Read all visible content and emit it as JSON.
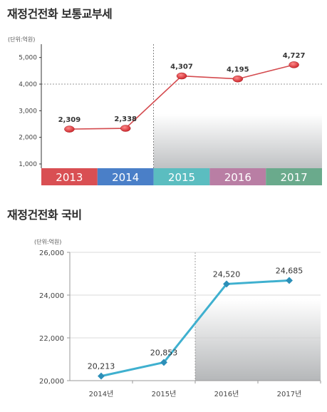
{
  "charts": [
    {
      "title": "재정건전화 보통교부세",
      "unit": "(단위:억원)",
      "type": "line",
      "categories": [
        "2013",
        "2014",
        "2015",
        "2016",
        "2017"
      ],
      "category_colors": [
        "#d94f53",
        "#4a7fc8",
        "#5bbdc0",
        "#b97ea4",
        "#6aaa8c"
      ],
      "values": [
        2309,
        2338,
        4307,
        4195,
        4727
      ],
      "value_labels": [
        "2,309",
        "2,338",
        "4,307",
        "4,195",
        "4,727"
      ],
      "yticks": [
        1000,
        2000,
        3000,
        4000,
        5000
      ],
      "ytick_labels": [
        "1,000",
        "2,000",
        "3,000",
        "4,000",
        "5,000"
      ],
      "ylim": [
        1000,
        5500
      ],
      "line_color": "#d44a4e",
      "shaded_from_category": "2015"
    },
    {
      "title": "재정건전화 국비",
      "unit": "(단위:억원)",
      "type": "line",
      "categories": [
        "2014년",
        "2015년",
        "2016년",
        "2017년"
      ],
      "values": [
        20213,
        20853,
        24520,
        24685
      ],
      "value_labels": [
        "20,213",
        "20,853",
        "24,520",
        "24,685"
      ],
      "yticks": [
        20000,
        22000,
        24000,
        26000
      ],
      "ytick_labels": [
        "20,000",
        "22,000",
        "24,000",
        "26,000"
      ],
      "ylim": [
        20000,
        26000
      ],
      "line_color": "#3fb0cf",
      "shaded_from_category": "2016년"
    }
  ]
}
